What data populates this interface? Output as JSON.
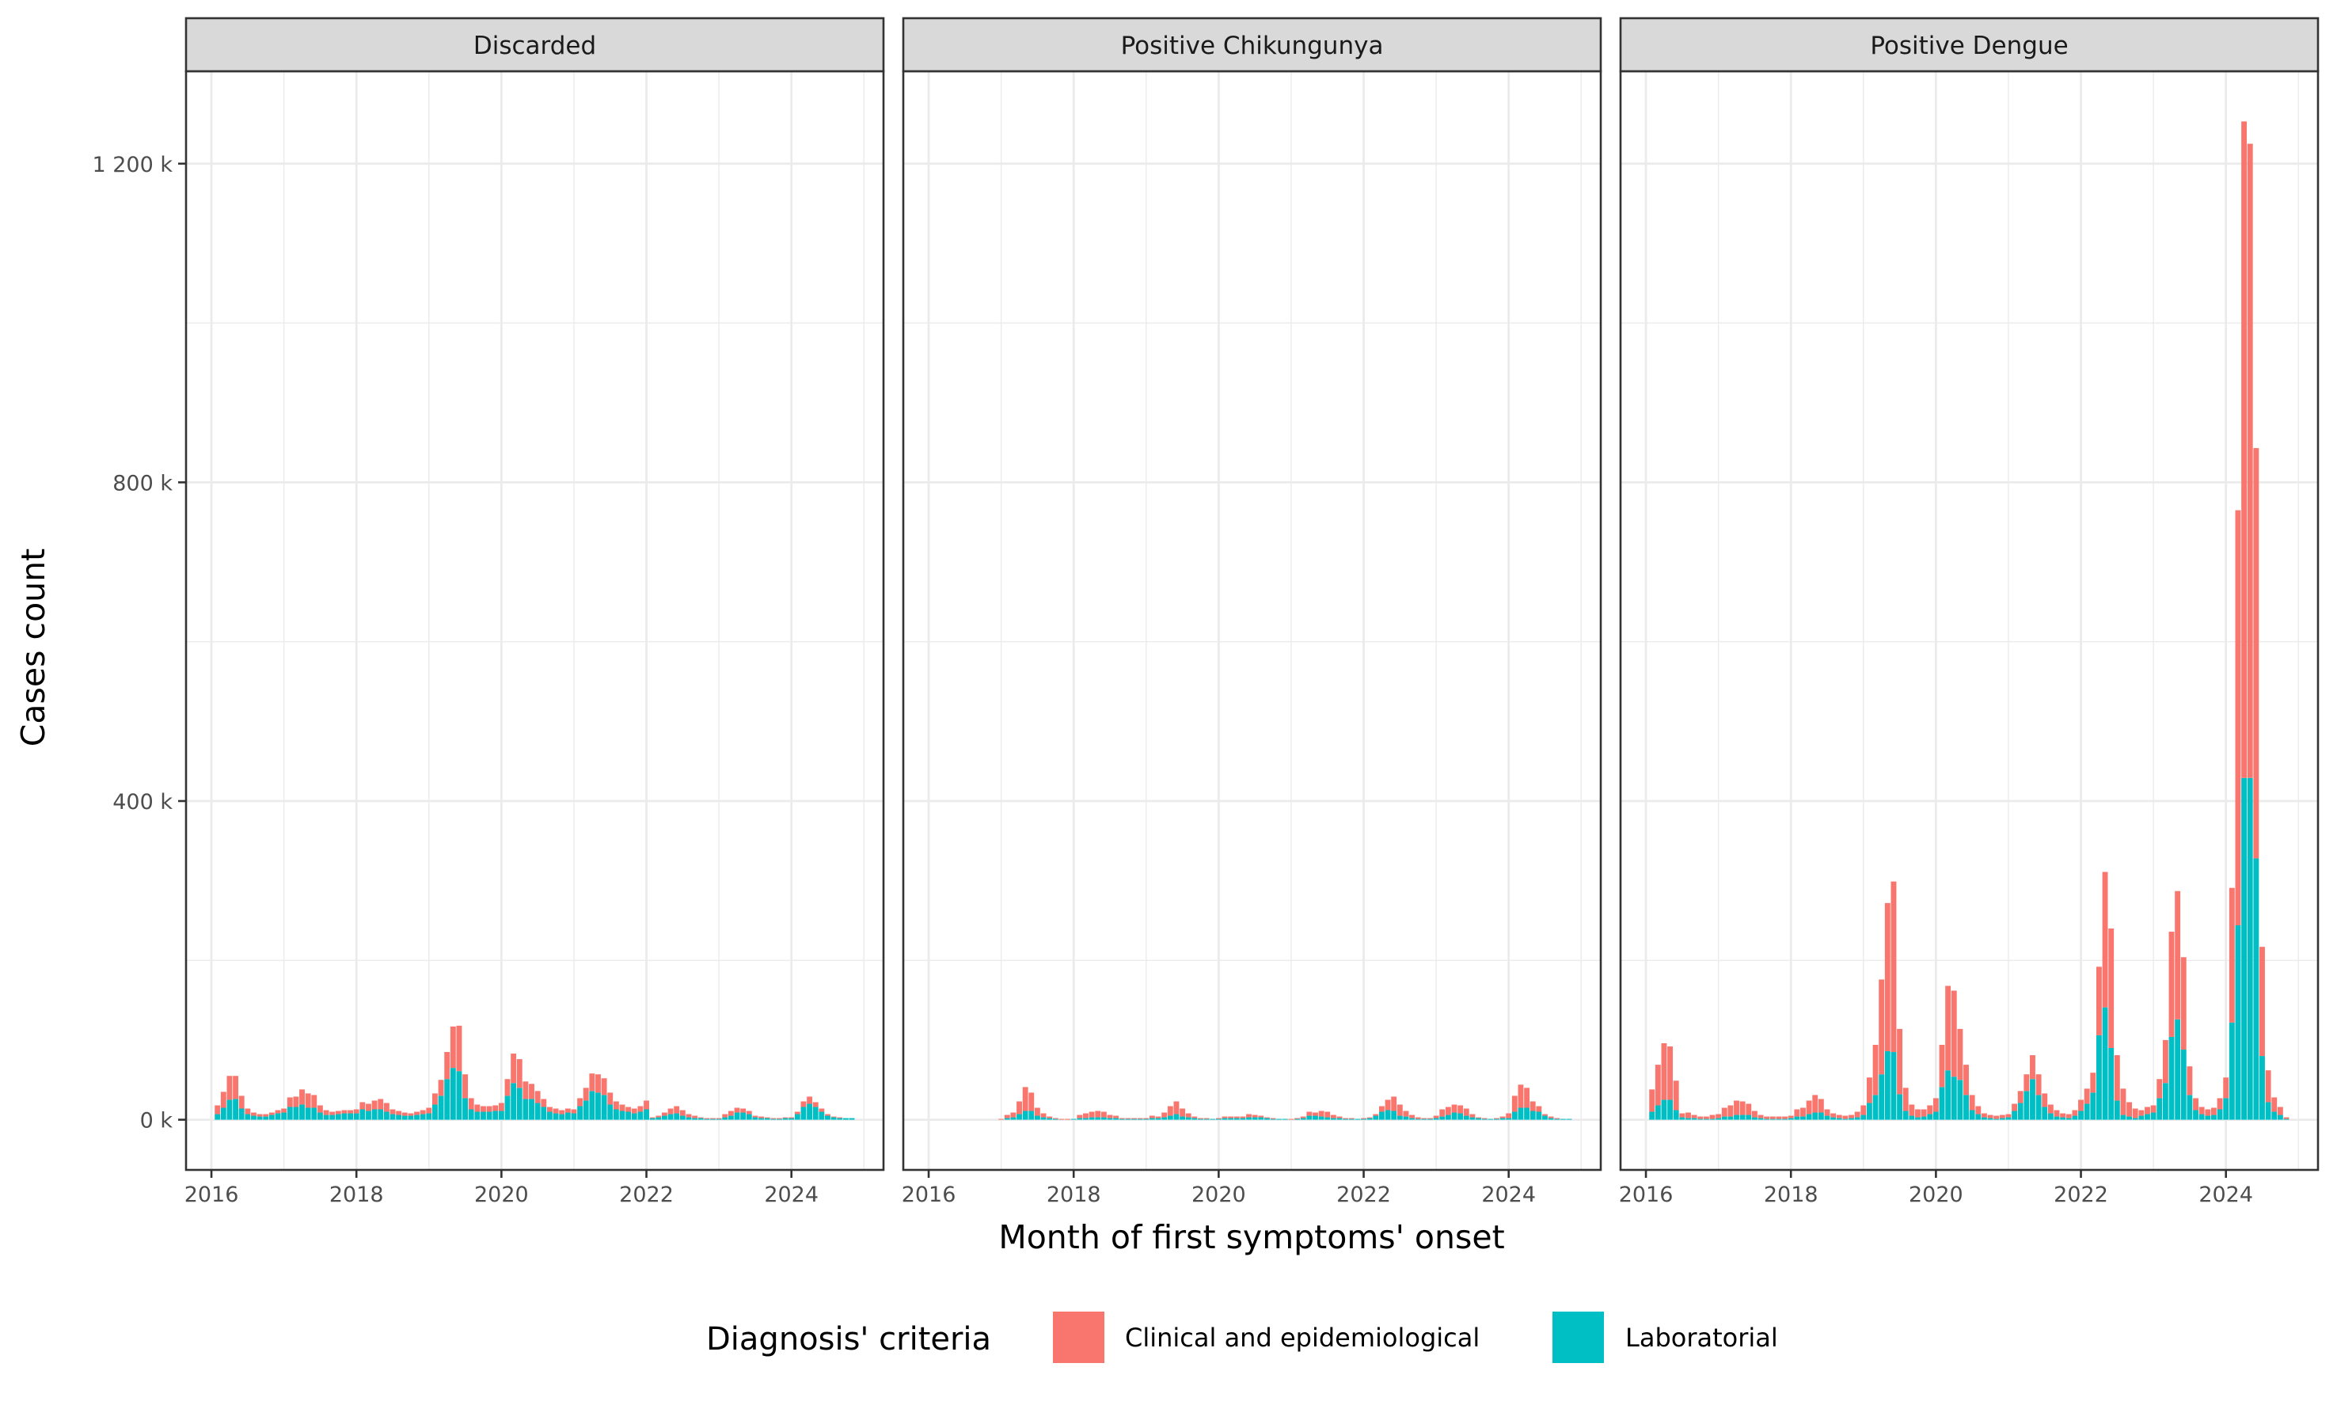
{
  "chart_data": {
    "type": "bar",
    "stacked": true,
    "xlabel": "Month of first symptoms' onset",
    "ylabel": "Cases count",
    "y_unit_suffix": " k",
    "y_ticks": [
      0,
      400,
      800,
      1200
    ],
    "y_tick_labels": [
      "0 k",
      "400 k",
      "800 k",
      "1 200 k"
    ],
    "x_ticks": [
      2016,
      2018,
      2020,
      2022,
      2024
    ],
    "x_tick_labels": [
      "2016",
      "2018",
      "2020",
      "2022",
      "2024"
    ],
    "ylim": [
      -63,
      1316
    ],
    "xlim": [
      2015.65,
      2025.27
    ],
    "grid": true,
    "legend": {
      "title": "Diagnosis' criteria",
      "placement": "bottom",
      "entries": [
        {
          "label": "Clinical and epidemiological",
          "color": "#F8766D"
        },
        {
          "label": "Laboratorial",
          "color": "#00BFC4"
        }
      ]
    },
    "panels": [
      {
        "title": "Discarded",
        "start_month": "2016-01",
        "series": [
          {
            "name": "Laboratorial",
            "color": "#00BFC4",
            "values": [
              7,
              15,
              25,
              26,
              14,
              7,
              5,
              4,
              4,
              6,
              8,
              9,
              16,
              16,
              19,
              15,
              15,
              9,
              6,
              6,
              7,
              8,
              8,
              8,
              13,
              11,
              13,
              13,
              10,
              7,
              6,
              5,
              5,
              6,
              7,
              8,
              19,
              30,
              51,
              65,
              61,
              27,
              13,
              10,
              10,
              10,
              11,
              11,
              30,
              46,
              40,
              26,
              26,
              21,
              16,
              10,
              8,
              7,
              9,
              8,
              17,
              24,
              36,
              34,
              31,
              19,
              13,
              11,
              10,
              8,
              10,
              13,
              2,
              3,
              5,
              7,
              8,
              5,
              3,
              2,
              2,
              1,
              1,
              1,
              3,
              5,
              9,
              9,
              7,
              3,
              2,
              2,
              1,
              1,
              2,
              2,
              7,
              16,
              20,
              16,
              10,
              5,
              3,
              2,
              2,
              2
            ]
          },
          {
            "name": "Clinical and epidemiological",
            "color": "#F8766D",
            "values": [
              11,
              20,
              30,
              29,
              16,
              7,
              4,
              3,
              3,
              3,
              4,
              5,
              12,
              13,
              19,
              18,
              16,
              9,
              6,
              4,
              4,
              4,
              4,
              5,
              9,
              9,
              11,
              13,
              11,
              6,
              5,
              4,
              3,
              4,
              5,
              7,
              14,
              20,
              34,
              52,
              57,
              30,
              14,
              9,
              7,
              7,
              7,
              10,
              21,
              37,
              36,
              22,
              19,
              15,
              10,
              6,
              6,
              5,
              5,
              5,
              10,
              16,
              22,
              23,
              21,
              15,
              10,
              8,
              6,
              6,
              7,
              11,
              1,
              2,
              4,
              7,
              9,
              7,
              4,
              3,
              1,
              1,
              1,
              1,
              4,
              6,
              6,
              5,
              4,
              2,
              2,
              1,
              1,
              1,
              1,
              1,
              3,
              7,
              9,
              6,
              4,
              2,
              1,
              1,
              0,
              0
            ]
          }
        ]
      },
      {
        "title": "Positive Chikungunya",
        "start_month": "2016-12",
        "series": [
          {
            "name": "Laboratorial",
            "color": "#00BFC4",
            "values": [
              0,
              2,
              3,
              7,
              11,
              11,
              5,
              3,
              2,
              1,
              0,
              0,
              1,
              2,
              2,
              3,
              3,
              3,
              2,
              2,
              1,
              1,
              1,
              1,
              1,
              2,
              2,
              3,
              5,
              7,
              4,
              3,
              2,
              1,
              1,
              1,
              1,
              2,
              2,
              2,
              2,
              3,
              3,
              3,
              2,
              1,
              1,
              1,
              0,
              1,
              2,
              5,
              5,
              4,
              3,
              2,
              2,
              1,
              1,
              1,
              1,
              2,
              5,
              10,
              12,
              11,
              5,
              4,
              2,
              1,
              1,
              1,
              2,
              4,
              6,
              9,
              8,
              5,
              3,
              2,
              1,
              1,
              1,
              2,
              2,
              10,
              15,
              15,
              11,
              10,
              5,
              2,
              1,
              1,
              1
            ]
          },
          {
            "name": "Clinical and epidemiological",
            "color": "#F8766D",
            "values": [
              1,
              4,
              6,
              16,
              30,
              23,
              10,
              5,
              2,
              1,
              1,
              1,
              0,
              4,
              6,
              7,
              8,
              7,
              4,
              3,
              1,
              1,
              1,
              1,
              1,
              3,
              2,
              6,
              12,
              16,
              10,
              5,
              2,
              1,
              1,
              0,
              1,
              2,
              2,
              2,
              2,
              4,
              3,
              2,
              1,
              1,
              0,
              0,
              1,
              1,
              2,
              5,
              4,
              7,
              7,
              4,
              2,
              1,
              1,
              0,
              1,
              1,
              2,
              7,
              13,
              18,
              14,
              7,
              4,
              2,
              1,
              1,
              3,
              9,
              10,
              10,
              10,
              9,
              4,
              1,
              1,
              0,
              1,
              2,
              6,
              20,
              29,
              25,
              12,
              7,
              2,
              2,
              1,
              0,
              0
            ]
          }
        ]
      },
      {
        "title": "Positive Dengue",
        "start_month": "2016-01",
        "series": [
          {
            "name": "Laboratorial",
            "color": "#00BFC4",
            "values": [
              10,
              18,
              25,
              25,
              12,
              3,
              2,
              2,
              1,
              1,
              1,
              2,
              4,
              4,
              6,
              6,
              6,
              3,
              2,
              1,
              1,
              1,
              1,
              2,
              4,
              4,
              7,
              9,
              9,
              5,
              3,
              2,
              1,
              2,
              3,
              6,
              21,
              31,
              57,
              86,
              85,
              32,
              11,
              5,
              3,
              4,
              7,
              10,
              41,
              62,
              54,
              50,
              31,
              12,
              7,
              3,
              2,
              1,
              2,
              3,
              11,
              21,
              36,
              51,
              31,
              16,
              8,
              4,
              3,
              2,
              5,
              11,
              20,
              34,
              106,
              141,
              90,
              24,
              6,
              4,
              2,
              5,
              7,
              9,
              27,
              46,
              104,
              126,
              88,
              31,
              12,
              7,
              5,
              6,
              13,
              27,
              122,
              244,
              429,
              429,
              328,
              80,
              22,
              10,
              6,
              1
            ]
          },
          {
            "name": "Clinical and epidemiological",
            "color": "#F8766D",
            "values": [
              28,
              51,
              71,
              67,
              37,
              5,
              7,
              4,
              3,
              3,
              5,
              5,
              11,
              14,
              18,
              17,
              14,
              8,
              4,
              3,
              3,
              3,
              3,
              3,
              9,
              11,
              17,
              22,
              17,
              8,
              5,
              4,
              4,
              4,
              7,
              12,
              32,
              63,
              119,
              186,
              214,
              82,
              29,
              14,
              10,
              9,
              11,
              17,
              53,
              106,
              108,
              64,
              38,
              19,
              10,
              5,
              4,
              4,
              4,
              4,
              9,
              15,
              21,
              30,
              26,
              17,
              11,
              8,
              5,
              5,
              7,
              14,
              19,
              25,
              86,
              170,
              150,
              57,
              33,
              18,
              12,
              7,
              9,
              9,
              24,
              54,
              132,
              161,
              116,
              36,
              15,
              9,
              8,
              9,
              14,
              26,
              169,
              521,
              824,
              796,
              515,
              137,
              40,
              18,
              10,
              2
            ]
          }
        ]
      }
    ]
  }
}
